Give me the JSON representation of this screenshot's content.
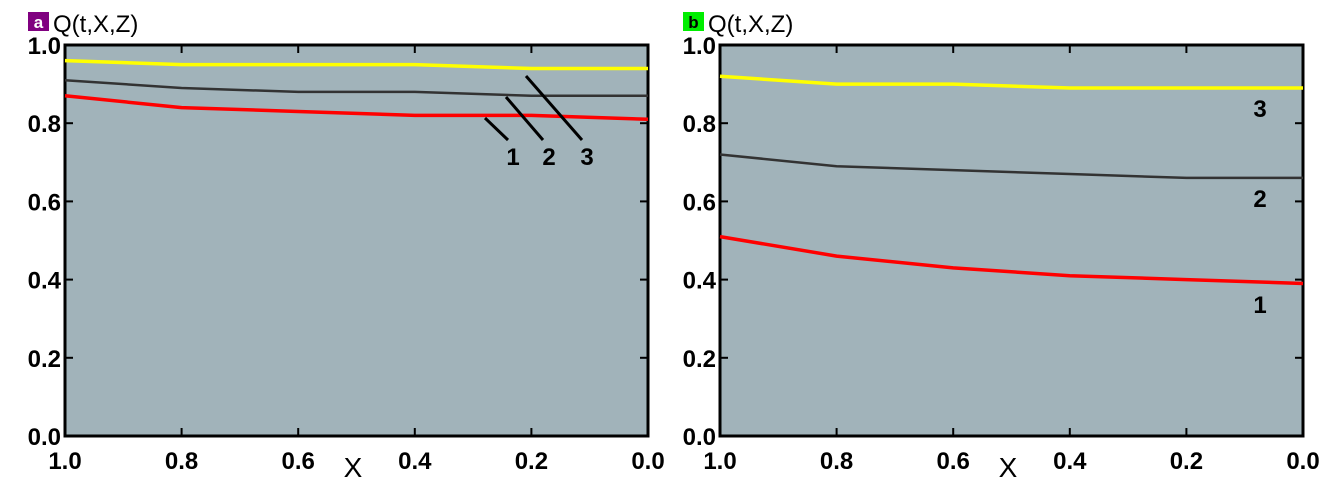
{
  "chart_data": [
    {
      "type": "line",
      "panel": "a",
      "badge_color": "#800080",
      "ylabel": "Q(t,X,Z)",
      "xlabel": "X",
      "xlim": [
        1.0,
        0.0
      ],
      "ylim": [
        0.0,
        1.0
      ],
      "x_ticks": [
        "1.0",
        "0.8",
        "0.6",
        "0.4",
        "0.2",
        "0.0"
      ],
      "y_ticks": [
        "0.0",
        "0.2",
        "0.4",
        "0.6",
        "0.8",
        "1.0"
      ],
      "grid": false,
      "series": [
        {
          "name": "1",
          "color": "#ff0000",
          "x": [
            1.0,
            0.8,
            0.6,
            0.4,
            0.2,
            0.0
          ],
          "y": [
            0.87,
            0.84,
            0.83,
            0.82,
            0.82,
            0.81
          ]
        },
        {
          "name": "2",
          "color": "#333333",
          "x": [
            1.0,
            0.8,
            0.6,
            0.4,
            0.2,
            0.0
          ],
          "y": [
            0.91,
            0.89,
            0.88,
            0.88,
            0.87,
            0.87
          ]
        },
        {
          "name": "3",
          "color": "#ffff00",
          "x": [
            1.0,
            0.8,
            0.6,
            0.4,
            0.2,
            0.0
          ],
          "y": [
            0.96,
            0.95,
            0.95,
            0.95,
            0.94,
            0.94
          ]
        }
      ]
    },
    {
      "type": "line",
      "panel": "b",
      "badge_color": "#00ee00",
      "ylabel": "Q(t,X,Z)",
      "xlabel": "X",
      "xlim": [
        1.0,
        0.0
      ],
      "ylim": [
        0.0,
        1.0
      ],
      "x_ticks": [
        "1.0",
        "0.8",
        "0.6",
        "0.4",
        "0.2",
        "0.0"
      ],
      "y_ticks": [
        "0.0",
        "0.2",
        "0.4",
        "0.6",
        "0.8",
        "1.0"
      ],
      "grid": false,
      "series": [
        {
          "name": "1",
          "color": "#ff0000",
          "x": [
            1.0,
            0.8,
            0.6,
            0.4,
            0.2,
            0.0
          ],
          "y": [
            0.51,
            0.46,
            0.43,
            0.41,
            0.4,
            0.39
          ]
        },
        {
          "name": "2",
          "color": "#333333",
          "x": [
            1.0,
            0.8,
            0.6,
            0.4,
            0.2,
            0.0
          ],
          "y": [
            0.72,
            0.69,
            0.68,
            0.67,
            0.66,
            0.66
          ]
        },
        {
          "name": "3",
          "color": "#ffff00",
          "x": [
            1.0,
            0.8,
            0.6,
            0.4,
            0.2,
            0.0
          ],
          "y": [
            0.92,
            0.9,
            0.9,
            0.89,
            0.89,
            0.89
          ]
        }
      ]
    }
  ]
}
